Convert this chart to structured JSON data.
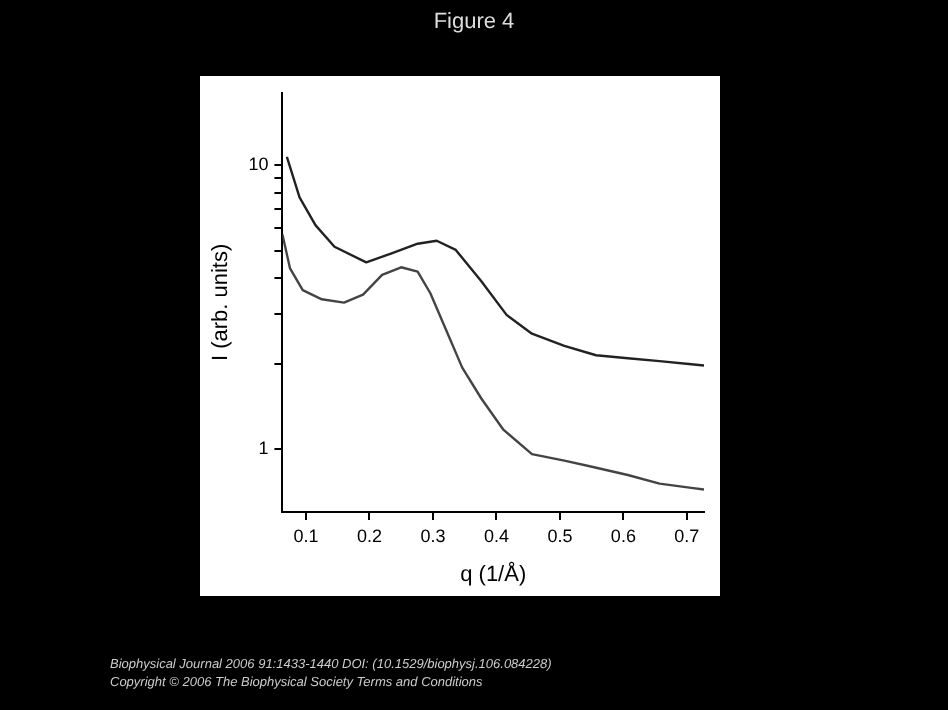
{
  "chart_data": {
    "type": "line",
    "title": "Figure 4",
    "xlabel": "q (1/Å)",
    "ylabel": "I (arb. units)",
    "log": "y",
    "grid": false,
    "legend": false,
    "marker": "none",
    "line_style": "solid",
    "xlim": [
      0.063,
      0.727
    ],
    "xticks": [
      0.1,
      0.2,
      0.3,
      0.4,
      0.5,
      0.6,
      0.7
    ],
    "ylim": [
      0.6,
      18
    ],
    "yticks": [
      {
        "value": 1,
        "label": "1"
      },
      {
        "value": 2,
        "label": null
      },
      {
        "value": 3,
        "label": null
      },
      {
        "value": 4,
        "label": null
      },
      {
        "value": 5,
        "label": null
      },
      {
        "value": 6,
        "label": null
      },
      {
        "value": 7,
        "label": null
      },
      {
        "value": 8,
        "label": null
      },
      {
        "value": 9,
        "label": null
      },
      {
        "value": 10,
        "label": "10"
      }
    ],
    "series": [
      {
        "color": "#222222",
        "x": [
          0.07,
          0.09,
          0.115,
          0.145,
          0.195,
          0.236,
          0.276,
          0.306,
          0.336,
          0.376,
          0.416,
          0.456,
          0.507,
          0.557,
          0.607,
          0.657,
          0.707,
          0.727
        ],
        "values": [
          10.7,
          7.7,
          6.15,
          5.16,
          4.55,
          4.9,
          5.29,
          5.42,
          5.03,
          3.91,
          2.97,
          2.55,
          2.31,
          2.14,
          2.09,
          2.04,
          1.99,
          1.97
        ]
      },
      {
        "color": "#444444",
        "x": [
          0.063,
          0.075,
          0.095,
          0.125,
          0.16,
          0.19,
          0.22,
          0.25,
          0.276,
          0.296,
          0.321,
          0.346,
          0.376,
          0.411,
          0.456,
          0.507,
          0.547,
          0.607,
          0.657,
          0.707,
          0.727
        ],
        "values": [
          5.7,
          4.33,
          3.63,
          3.37,
          3.28,
          3.5,
          4.11,
          4.37,
          4.22,
          3.54,
          2.62,
          1.94,
          1.51,
          1.17,
          0.96,
          0.91,
          0.87,
          0.81,
          0.755,
          0.73,
          0.72
        ]
      }
    ],
    "annotations": [
      "Biophysical Journal 2006 91:1433-1440 DOI: (10.1529/biophysj.106.084228)",
      "Copyright © 2006 The Biophysical Society Terms and Conditions"
    ]
  }
}
